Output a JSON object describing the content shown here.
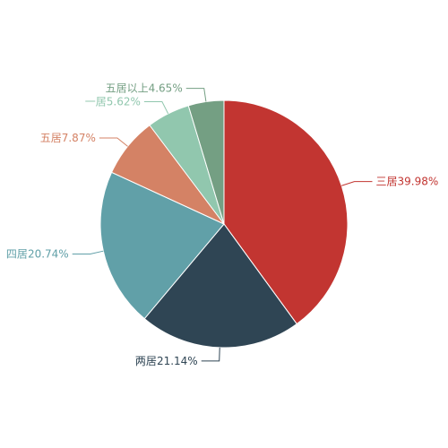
{
  "chart_data": {
    "type": "pie",
    "categories": [
      "三居",
      "两居",
      "四居",
      "五居",
      "一居",
      "五居以上"
    ],
    "values": [
      39.98,
      21.14,
      20.74,
      7.87,
      5.62,
      4.65
    ],
    "value_labels": [
      "39.98%",
      "21.14%",
      "20.74%",
      "7.87%",
      "5.62%",
      "4.65%"
    ],
    "colors": [
      "#c23531",
      "#2f4554",
      "#61a0a8",
      "#d48265",
      "#91c7ae",
      "#749f83"
    ]
  }
}
